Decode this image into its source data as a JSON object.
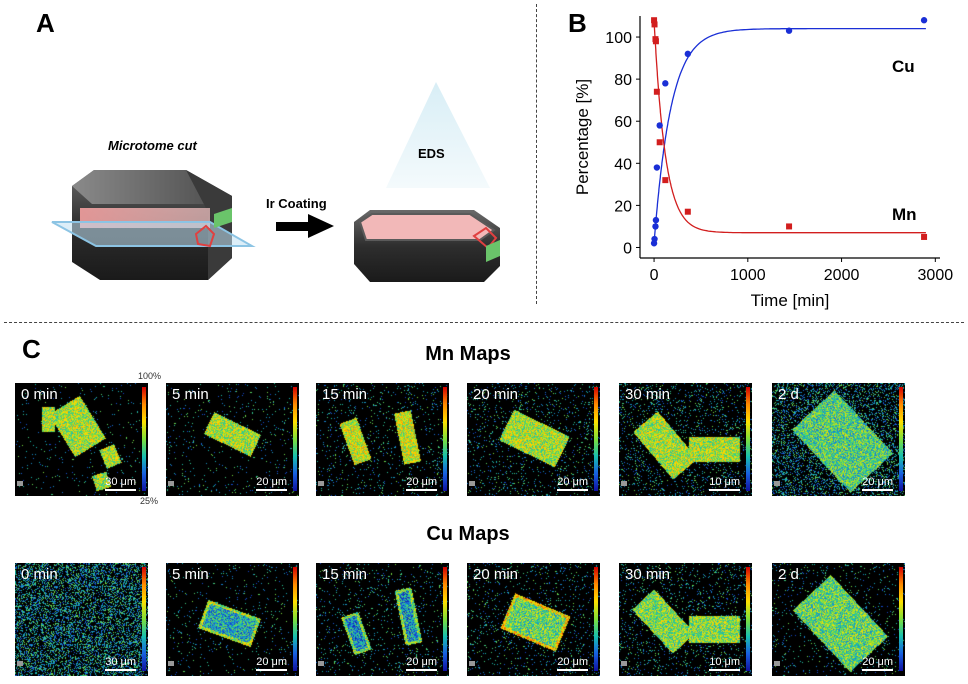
{
  "panels": {
    "a": "A",
    "b": "B",
    "c": "C"
  },
  "schematic": {
    "microtome_label": "Microtome cut",
    "coating_label": "Ir Coating",
    "eds_label": "EDS"
  },
  "chart_data": {
    "type": "scatter",
    "xlabel": "Time [min]",
    "ylabel": "Percentage [%]",
    "xlim": [
      -150,
      3050
    ],
    "ylim": [
      -5,
      110
    ],
    "xticks": [
      0,
      1000,
      2000,
      3000
    ],
    "yticks": [
      0,
      20,
      40,
      60,
      80,
      100
    ],
    "series": [
      {
        "name": "Cu",
        "color": "#1a2fd6",
        "x": [
          0,
          5,
          15,
          20,
          30,
          60,
          120,
          360,
          1440,
          2880
        ],
        "y": [
          2,
          4,
          10,
          13,
          38,
          58,
          78,
          92,
          103,
          108
        ]
      },
      {
        "name": "Mn",
        "color": "#d21e1e",
        "x": [
          0,
          5,
          15,
          20,
          30,
          60,
          120,
          360,
          1440,
          2880
        ],
        "y": [
          108,
          106,
          99,
          98,
          74,
          50,
          32,
          17,
          10,
          5
        ]
      }
    ]
  },
  "maps": {
    "mn_title": "Mn Maps",
    "cu_title": "Cu Maps",
    "colorbar_max": "100%",
    "colorbar_min": "25%",
    "mn": [
      {
        "time": "0 min",
        "scale": "30 μm"
      },
      {
        "time": "5 min",
        "scale": "20 μm"
      },
      {
        "time": "15 min",
        "scale": "20 μm"
      },
      {
        "time": "20 min",
        "scale": "20 μm"
      },
      {
        "time": "30 min",
        "scale": "10 μm"
      },
      {
        "time": "2 d",
        "scale": "20 μm"
      }
    ],
    "cu": [
      {
        "time": "0 min",
        "scale": "30 μm"
      },
      {
        "time": "5 min",
        "scale": "20 μm"
      },
      {
        "time": "15 min",
        "scale": "20 μm"
      },
      {
        "time": "20 min",
        "scale": "20 μm"
      },
      {
        "time": "30 min",
        "scale": "10 μm"
      },
      {
        "time": "2 d",
        "scale": "20 μm"
      }
    ]
  }
}
